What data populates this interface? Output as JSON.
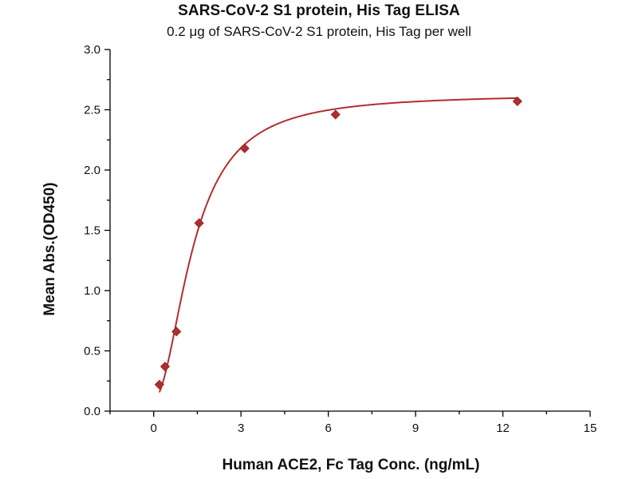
{
  "chart_data": {
    "type": "scatter",
    "title": "SARS-CoV-2 S1 protein, His Tag ELISA",
    "subtitle": "0.2 μg of SARS-CoV-2 S1 protein, His Tag per well",
    "xlabel": "Human ACE2, Fc Tag Conc. (ng/mL)",
    "ylabel": "Mean Abs.(OD450)",
    "xlim": [
      -1.5,
      15
    ],
    "ylim": [
      0,
      3.0
    ],
    "x_ticks": [
      0,
      3,
      6,
      9,
      12,
      15
    ],
    "x_minor_ticks": [
      -1.5,
      1.5,
      4.5,
      7.5,
      10.5,
      13.5
    ],
    "y_ticks": [
      0.0,
      0.5,
      1.0,
      1.5,
      2.0,
      2.5,
      3.0
    ],
    "y_tick_labels": [
      "0.0",
      "0.5",
      "1.0",
      "1.5",
      "2.0",
      "2.5",
      "3.0"
    ],
    "grid": false,
    "marker": "diamond",
    "marker_color": "#b22e2e",
    "curve_color": "#b22e2e",
    "series": [
      {
        "x": [
          0.195,
          0.39,
          0.78,
          1.56,
          3.125,
          6.25,
          12.5
        ],
        "y": [
          0.22,
          0.37,
          0.66,
          1.56,
          2.18,
          2.46,
          2.57
        ]
      }
    ]
  }
}
